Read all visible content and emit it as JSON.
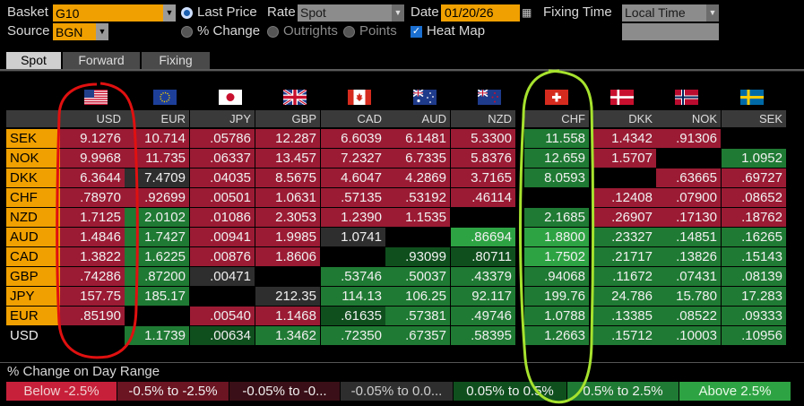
{
  "controls": {
    "basket_label": "Basket",
    "basket_value": "G10",
    "source_label": "Source",
    "source_value": "BGN",
    "last_price_label": "Last Price",
    "pct_change_label": "% Change",
    "rate_label": "Rate",
    "rate_value": "Spot",
    "outrights_label": "Outrights",
    "points_label": "Points",
    "date_label": "Date",
    "date_value": "01/20/26",
    "heat_map_label": "Heat Map",
    "fixing_time_label": "Fixing Time",
    "fixing_time_value": "Local Time"
  },
  "tabs": [
    "Spot",
    "Forward",
    "Fixing"
  ],
  "active_tab": "Spot",
  "columns": [
    "USD",
    "EUR",
    "JPY",
    "GBP",
    "CAD",
    "AUD",
    "NZD",
    "CHF",
    "DKK",
    "NOK",
    "SEK"
  ],
  "rows": [
    {
      "label": "SEK",
      "cells": [
        "9.1276",
        "10.714",
        ".05786",
        "12.287",
        "6.6039",
        "6.1481",
        "5.3300",
        "11.558",
        "1.4342",
        ".91306",
        ""
      ]
    },
    {
      "label": "NOK",
      "cells": [
        "9.9968",
        "11.735",
        ".06337",
        "13.457",
        "7.2327",
        "6.7335",
        "5.8376",
        "12.659",
        "1.5707",
        "",
        "1.0952"
      ]
    },
    {
      "label": "DKK",
      "cells": [
        "6.3644",
        "7.4709",
        ".04035",
        "8.5675",
        "4.6047",
        "4.2869",
        "3.7165",
        "8.0593",
        "",
        ".63665",
        ".69727"
      ]
    },
    {
      "label": "CHF",
      "cells": [
        ".78970",
        ".92699",
        ".00501",
        "1.0631",
        ".57135",
        ".53192",
        ".46114",
        "",
        ".12408",
        ".07900",
        ".08652"
      ]
    },
    {
      "label": "NZD",
      "cells": [
        "1.7125",
        "2.0102",
        ".01086",
        "2.3053",
        "1.2390",
        "1.1535",
        "",
        "2.1685",
        ".26907",
        ".17130",
        ".18762"
      ]
    },
    {
      "label": "AUD",
      "cells": [
        "1.4846",
        "1.7427",
        ".00941",
        "1.9985",
        "1.0741",
        "",
        ".86694",
        "1.8800",
        ".23327",
        ".14851",
        ".16265"
      ]
    },
    {
      "label": "CAD",
      "cells": [
        "1.3822",
        "1.6225",
        ".00876",
        "1.8606",
        "",
        ".93099",
        ".80711",
        "1.7502",
        ".21717",
        ".13826",
        ".15143"
      ]
    },
    {
      "label": "GBP",
      "cells": [
        ".74286",
        ".87200",
        ".00471",
        "",
        ".53746",
        ".50037",
        ".43379",
        ".94068",
        ".11672",
        ".07431",
        ".08139"
      ]
    },
    {
      "label": "JPY",
      "cells": [
        "157.75",
        "185.17",
        "",
        "212.35",
        "114.13",
        "106.25",
        "92.117",
        "199.76",
        "24.786",
        "15.780",
        "17.283"
      ]
    },
    {
      "label": "EUR",
      "cells": [
        ".85190",
        "",
        ".00540",
        "1.1468",
        ".61635",
        ".57381",
        ".49746",
        "1.0788",
        ".13385",
        ".08522",
        ".09333"
      ]
    },
    {
      "label": "USD",
      "cells": [
        "",
        "1.1739",
        ".00634",
        "1.3462",
        ".72350",
        ".67357",
        ".58395",
        "1.2663",
        ".15712",
        ".10003",
        ".10956"
      ]
    }
  ],
  "heat": [
    [
      "r3",
      "r3",
      "r3",
      "r3",
      "r3",
      "r3",
      "r3",
      "g2",
      "r3",
      "r3",
      "e"
    ],
    [
      "r3",
      "r3",
      "r3",
      "r3",
      "r3",
      "r3",
      "r3",
      "g2",
      "r3",
      "e",
      "g2"
    ],
    [
      "r3",
      "n",
      "r3",
      "r3",
      "r3",
      "r3",
      "r3",
      "g2",
      "e",
      "r3",
      "r3"
    ],
    [
      "r3",
      "r3",
      "r3",
      "r3",
      "r3",
      "r3",
      "r3",
      "e",
      "r3",
      "r3",
      "r3"
    ],
    [
      "r3",
      "g2",
      "r3",
      "r3",
      "r3",
      "r3",
      "e",
      "g2",
      "r3",
      "r3",
      "r3"
    ],
    [
      "r3",
      "g2",
      "r3",
      "r3",
      "n",
      "e",
      "g3",
      "g3",
      "g2",
      "g2",
      "g2"
    ],
    [
      "r3",
      "g2",
      "r3",
      "r3",
      "e",
      "g1",
      "g1",
      "g3",
      "g2",
      "g2",
      "g2"
    ],
    [
      "r3",
      "g2",
      "n",
      "e",
      "g2",
      "g2",
      "g2",
      "g2",
      "g2",
      "g2",
      "g2"
    ],
    [
      "r3",
      "g2",
      "e",
      "n",
      "g2",
      "g2",
      "g2",
      "g2",
      "g2",
      "g2",
      "g2"
    ],
    [
      "r3",
      "e",
      "r3",
      "r3",
      "g1",
      "g2",
      "g2",
      "g2",
      "g2",
      "g2",
      "g2"
    ],
    [
      "e",
      "g2",
      "g1",
      "g2",
      "g2",
      "g2",
      "g2",
      "g2",
      "g2",
      "g2",
      "g2"
    ]
  ],
  "heat_colors": {
    "r3": "#9b1b34",
    "r2": "#6b1422",
    "n": "#2e2e2e",
    "g1": "#0f4f1e",
    "g2": "#1f7a33",
    "g3": "#2ea343",
    "e": "#000000"
  },
  "flags": [
    "us-flag",
    "eu-flag",
    "jp-flag",
    "gb-flag",
    "ca-flag",
    "au-flag",
    "nz-flag",
    "ch-flag",
    "dk-flag",
    "no-flag",
    "se-flag"
  ],
  "legend": {
    "title": "% Change on Day Range",
    "items": [
      {
        "label": "Below -2.5%",
        "bg": "#c7203a",
        "fg": "#f0d0d0"
      },
      {
        "label": "-0.5% to -2.5%",
        "bg": "#6b1422",
        "fg": "#f0f0f0"
      },
      {
        "label": "-0.05% to -0...",
        "bg": "#3a0f17",
        "fg": "#f0f0f0"
      },
      {
        "label": "-0.05% to 0.0...",
        "bg": "#2e2e2e",
        "fg": "#cfcfcf"
      },
      {
        "label": "0.05% to 0.5%",
        "bg": "#0f4f1e",
        "fg": "#f0f0f0"
      },
      {
        "label": "0.5% to 2.5%",
        "bg": "#1f7a33",
        "fg": "#f0f0f0"
      },
      {
        "label": "Above 2.5%",
        "bg": "#2ea343",
        "fg": "#e8f8e8"
      }
    ]
  },
  "annotations": {
    "usd_column_circle_color": "#e01010",
    "chf_column_circle_color": "#a6e22e"
  }
}
